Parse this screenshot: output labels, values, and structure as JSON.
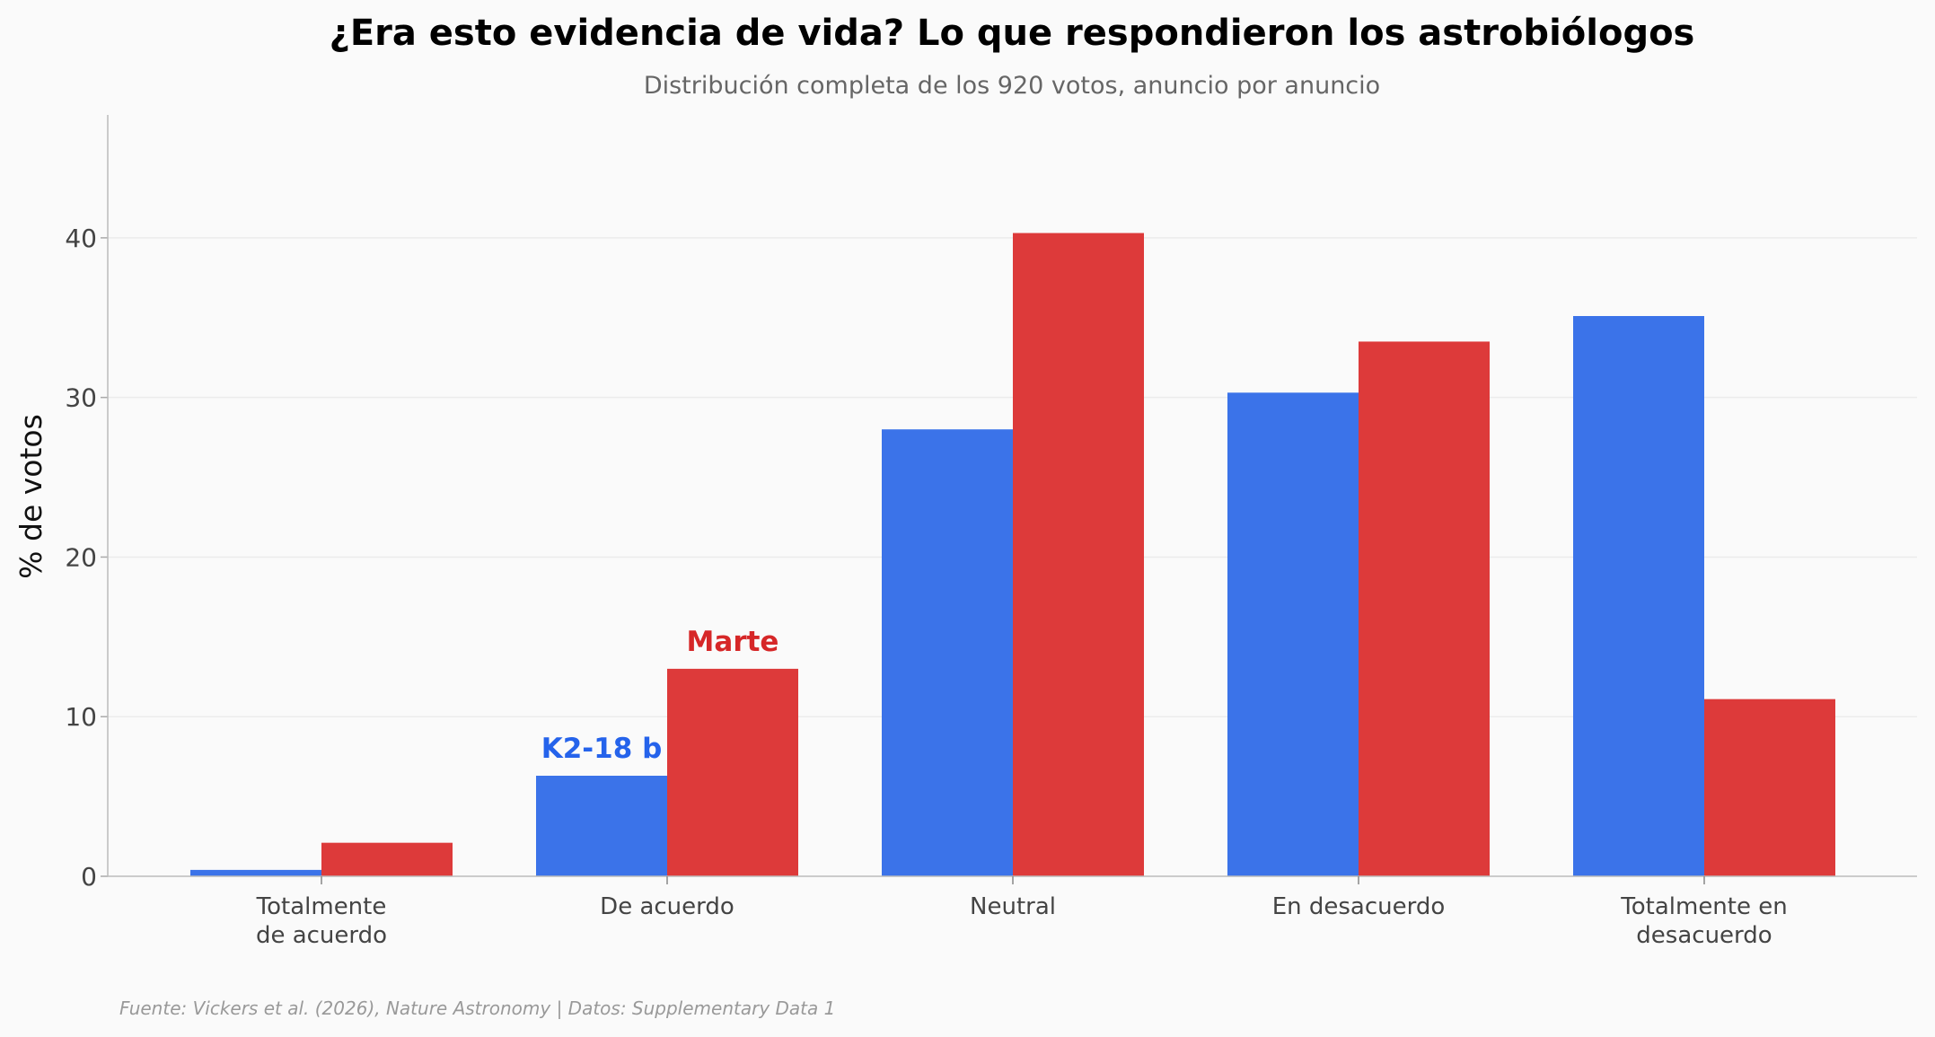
{
  "chart_data": {
    "type": "bar",
    "title": "¿Era esto evidencia de vida? Lo que respondieron los astrobiólogos",
    "subtitle": "Distribución completa de los 920 votos, anuncio por anuncio",
    "xlabel": "",
    "ylabel": "% de votos",
    "ylim": [
      0,
      47.7
    ],
    "yticks": [
      "0",
      "10",
      "20",
      "30",
      "40"
    ],
    "ytick_values": [
      0,
      10,
      20,
      30,
      40
    ],
    "grid": "horizontal",
    "categories": [
      [
        "Totalmente",
        "de acuerdo"
      ],
      [
        "De acuerdo"
      ],
      [
        "Neutral"
      ],
      [
        "En desacuerdo"
      ],
      [
        "Totalmente en",
        "desacuerdo"
      ]
    ],
    "series": [
      {
        "name": "K2-18 b",
        "color": "#3b73e9",
        "label_color": "#2563eb",
        "label_at": 1,
        "values": [
          0.4,
          6.3,
          28.0,
          30.3,
          35.1
        ]
      },
      {
        "name": "Marte",
        "color": "#dd3a3a",
        "label_color": "#d62728",
        "label_at": 1,
        "values": [
          2.1,
          13.0,
          40.3,
          33.5,
          11.1
        ]
      }
    ],
    "source": "Fuente: Vickers et al. (2026), Nature Astronomy | Datos: Supplementary Data 1"
  }
}
